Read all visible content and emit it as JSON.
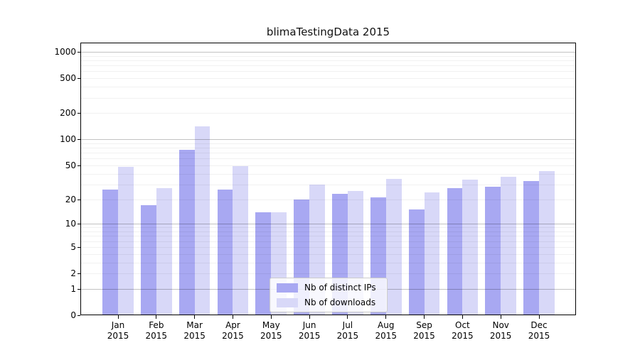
{
  "title": "blimaTestingData 2015",
  "chart_data": {
    "type": "bar",
    "title": "blimaTestingData 2015",
    "categories": [
      "Jan",
      "Feb",
      "Mar",
      "Apr",
      "May",
      "Jun",
      "Jul",
      "Aug",
      "Sep",
      "Oct",
      "Nov",
      "Dec"
    ],
    "year": "2015",
    "series": [
      {
        "name": "Nb of distinct IPs",
        "color": "#a8a8f2",
        "values": [
          26,
          17,
          75,
          26,
          14,
          20,
          23,
          21,
          15,
          27,
          28,
          33
        ]
      },
      {
        "name": "Nb of downloads",
        "color": "#d8d8f8",
        "values": [
          48,
          27,
          140,
          49,
          14,
          30,
          25,
          35,
          24,
          34,
          37,
          43
        ]
      }
    ],
    "yscale": "log1p",
    "yticks": [
      0,
      1,
      2,
      5,
      10,
      20,
      50,
      100,
      200,
      500,
      1000
    ],
    "ylim_top_value": 1000,
    "grid": {
      "major": [
        1,
        10,
        100,
        1000
      ],
      "minor": [
        2,
        3,
        4,
        5,
        6,
        7,
        8,
        9,
        20,
        30,
        40,
        50,
        60,
        70,
        80,
        90,
        200,
        300,
        400,
        500,
        600,
        700,
        800,
        900
      ]
    },
    "legend_position": "lower center",
    "xlabel": "",
    "ylabel": ""
  }
}
